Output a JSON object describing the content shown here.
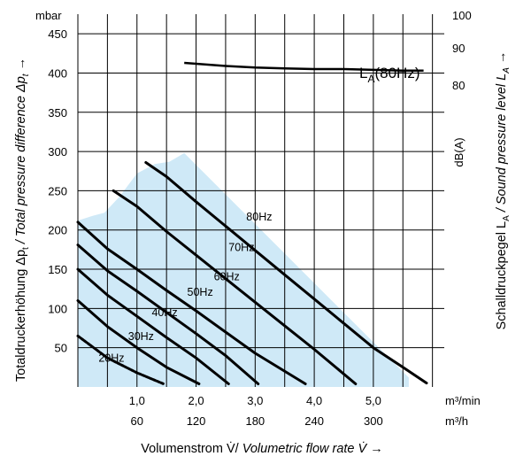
{
  "chart_data": {
    "type": "line",
    "left_axis": {
      "unit": "mbar",
      "title_plain": "Totaldruckerhöhung Δp",
      "title_sub": "t",
      "title_italic": " / Total pressure difference Δp",
      "title_sub2": "t",
      "title_arrow": " →",
      "ticks": [
        50,
        100,
        150,
        200,
        250,
        300,
        350,
        400,
        450
      ],
      "range": [
        0,
        475
      ]
    },
    "right_axis": {
      "unit": "dB(A)",
      "title_plain": "Schalldruckpegel L",
      "title_sub": "A",
      "title_italic": " / Sound pressure level L",
      "title_sub2": "A",
      "title_arrow": " →",
      "ticks": [
        100,
        90,
        80
      ]
    },
    "x_axis": {
      "tick_labels_m3min": [
        "1,0",
        "2,0",
        "3,0",
        "4,0",
        "5,0"
      ],
      "tick_values_m3min": [
        1.0,
        2.0,
        3.0,
        4.0,
        5.0
      ],
      "unit_m3min": "m³/min",
      "tick_labels_m3h": [
        "60",
        "120",
        "180",
        "240",
        "300"
      ],
      "unit_m3h": "m³/h",
      "title_plain": "Volumenstrom V̇/",
      "title_italic": " Volumetric flow rate V̇ →",
      "range": [
        0,
        6.2
      ]
    },
    "grid": true,
    "shaded_region": "operating range",
    "series": [
      {
        "name": "20Hz",
        "x": [
          0.0,
          0.5,
          1.0,
          1.45
        ],
        "y": [
          65,
          37,
          18,
          4
        ]
      },
      {
        "name": "30Hz",
        "x": [
          0.0,
          0.5,
          1.0,
          1.5,
          2.05
        ],
        "y": [
          110,
          77,
          50,
          25,
          4
        ]
      },
      {
        "name": "40Hz",
        "x": [
          0.0,
          0.5,
          1.0,
          1.5,
          2.0,
          2.55
        ],
        "y": [
          150,
          117,
          90,
          63,
          37,
          4
        ]
      },
      {
        "name": "50Hz",
        "x": [
          0.0,
          0.5,
          1.0,
          1.5,
          2.0,
          2.5,
          3.05
        ],
        "y": [
          181,
          148,
          122,
          95,
          68,
          40,
          4
        ]
      },
      {
        "name": "60Hz",
        "x": [
          0.0,
          0.5,
          1.0,
          1.5,
          2.0,
          2.5,
          3.0,
          3.85
        ],
        "y": [
          210,
          176,
          150,
          123,
          97,
          70,
          43,
          4
        ]
      },
      {
        "name": "70Hz",
        "x": [
          0.6,
          1.0,
          1.5,
          2.0,
          2.5,
          3.0,
          3.5,
          4.0,
          4.7
        ],
        "y": [
          250,
          230,
          198,
          168,
          138,
          108,
          78,
          48,
          4
        ]
      },
      {
        "name": "80Hz",
        "x": [
          1.15,
          1.5,
          2.0,
          2.5,
          3.0,
          3.5,
          4.0,
          4.5,
          5.0,
          5.5,
          5.9
        ],
        "y": [
          286,
          268,
          236,
          205,
          174,
          143,
          112,
          81,
          50,
          25,
          5
        ]
      }
    ],
    "la_curve": {
      "name_main": "L",
      "name_sub": "A",
      "name_rest": "(80Hz)",
      "x": [
        1.8,
        2.5,
        3.0,
        3.5,
        4.0,
        4.5,
        5.0,
        5.5,
        5.85
      ],
      "y": [
        413,
        409,
        407,
        406,
        405,
        405,
        404,
        403,
        403
      ]
    },
    "region_upper": {
      "x": [
        0.0,
        0.25,
        0.45,
        0.7,
        1.0,
        1.3,
        1.55,
        1.8,
        5.6
      ],
      "y": [
        212,
        218,
        222,
        242,
        272,
        284,
        287,
        298,
        12
      ]
    }
  }
}
